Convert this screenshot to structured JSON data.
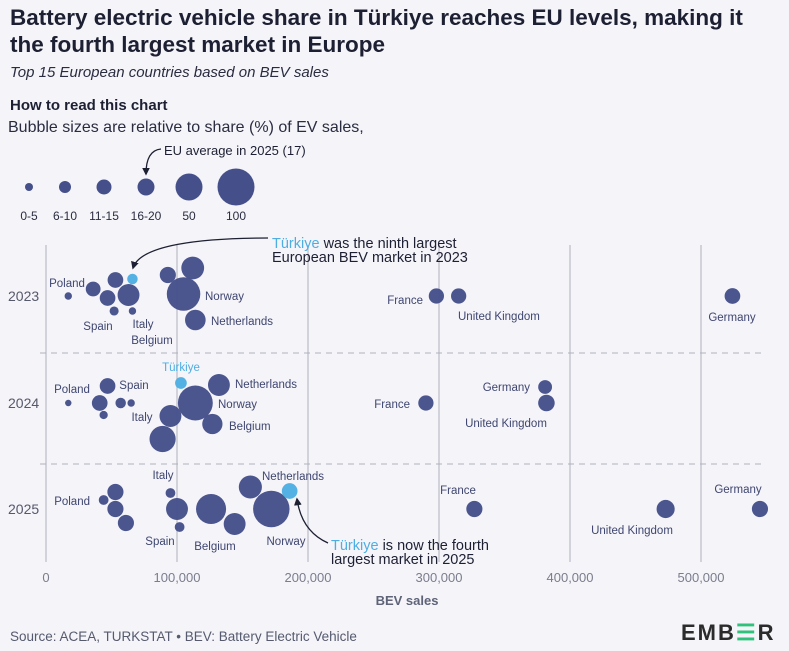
{
  "header": {
    "title": "Battery electric vehicle share in Türkiye reaches EU levels, making it the fourth largest market in Europe",
    "subtitle": "Top 15 European countries based on BEV sales"
  },
  "legend": {
    "heading": "How to read this chart",
    "description": "Bubble sizes are relative to share (%) of EV sales,",
    "eu_note": "EU average in 2025 (17)",
    "items": [
      {
        "label": "0-5",
        "share": 3
      },
      {
        "label": "6-10",
        "share": 8
      },
      {
        "label": "11-15",
        "share": 13
      },
      {
        "label": "16-20",
        "share": 18
      },
      {
        "label": "50",
        "share": 50
      },
      {
        "label": "100",
        "share": 100
      }
    ]
  },
  "annotations": {
    "top": {
      "highlight": "Türkiye",
      "rest_line1": " was the ninth largest",
      "line2": "European BEV market in 2023"
    },
    "bottom": {
      "highlight": "Türkiye",
      "rest_line1": " is now the fourth",
      "line2": "largest market in 2025"
    }
  },
  "colors": {
    "bubble": "#45508a",
    "turkiye": "#4eaee2",
    "grid": "#c5c6cf",
    "text": "#3f4670",
    "background": "#f4f4f9",
    "brand_green": "#2fc27a"
  },
  "chart_data": {
    "type": "scatter",
    "xlabel": "BEV sales",
    "ylabel": "",
    "xlim": [
      0,
      550000
    ],
    "xticks": [
      0,
      100000,
      200000,
      300000,
      400000,
      500000
    ],
    "xtick_labels": [
      "0",
      "100,000",
      "200,000",
      "300,000",
      "400,000",
      "500,000"
    ],
    "size_encoding": "share (%) of EV sales",
    "grid": true,
    "rows": [
      {
        "year": "2023",
        "points": [
          {
            "label": "Poland",
            "sales": 17000,
            "share": 4
          },
          {
            "label": "",
            "sales": 36000,
            "share": 16
          },
          {
            "label": "",
            "sales": 53000,
            "share": 18
          },
          {
            "label": "",
            "sales": 47000,
            "share": 18
          },
          {
            "label": "",
            "sales": 66000,
            "share": 8,
            "highlight": true
          },
          {
            "label": "",
            "sales": 63000,
            "share": 35
          },
          {
            "label": "Spain",
            "sales": 52000,
            "share": 6
          },
          {
            "label": "Italy",
            "sales": 66000,
            "share": 4
          },
          {
            "label": "Belgium",
            "sales": 93000,
            "share": 19
          },
          {
            "label": "",
            "sales": 112000,
            "share": 38
          },
          {
            "label": "Norway",
            "sales": 105000,
            "share": 82
          },
          {
            "label": "Netherlands",
            "sales": 114000,
            "share": 31
          },
          {
            "label": "France",
            "sales": 298000,
            "share": 17
          },
          {
            "label": "United Kingdom",
            "sales": 315000,
            "share": 17
          },
          {
            "label": "Germany",
            "sales": 524000,
            "share": 18
          }
        ]
      },
      {
        "year": "2024",
        "points": [
          {
            "label": "Poland",
            "sales": 17000,
            "share": 3
          },
          {
            "label": "",
            "sales": 47000,
            "share": 18
          },
          {
            "label": "",
            "sales": 41000,
            "share": 18
          },
          {
            "label": "",
            "sales": 44000,
            "share": 5
          },
          {
            "label": "Spain",
            "sales": 57000,
            "share": 8
          },
          {
            "label": "Italy",
            "sales": 65000,
            "share": 4
          },
          {
            "label": "Türkiye",
            "sales": 103000,
            "share": 10,
            "highlight": true
          },
          {
            "label": "Netherlands",
            "sales": 132000,
            "share": 35
          },
          {
            "label": "Norway",
            "sales": 114000,
            "share": 89
          },
          {
            "label": "",
            "sales": 95000,
            "share": 35
          },
          {
            "label": "Belgium",
            "sales": 127000,
            "share": 30
          },
          {
            "label": "",
            "sales": 89000,
            "share": 50
          },
          {
            "label": "Germany",
            "sales": 381000,
            "share": 14
          },
          {
            "label": "France",
            "sales": 290000,
            "share": 17
          },
          {
            "label": "United Kingdom",
            "sales": 382000,
            "share": 20
          }
        ]
      },
      {
        "year": "2025",
        "points": [
          {
            "label": "Poland",
            "sales": 44000,
            "share": 7
          },
          {
            "label": "",
            "sales": 53000,
            "share": 19
          },
          {
            "label": "",
            "sales": 53000,
            "share": 19
          },
          {
            "label": "",
            "sales": 61000,
            "share": 19
          },
          {
            "label": "Italy",
            "sales": 95000,
            "share": 7
          },
          {
            "label": "",
            "sales": 100000,
            "share": 35
          },
          {
            "label": "Spain",
            "sales": 102000,
            "share": 7
          },
          {
            "label": "",
            "sales": 126000,
            "share": 66
          },
          {
            "label": "Belgium",
            "sales": 144000,
            "share": 35
          },
          {
            "label": "Netherlands",
            "sales": 156000,
            "share": 39
          },
          {
            "label": "Norway",
            "sales": 172000,
            "share": 97
          },
          {
            "label": "",
            "sales": 186000,
            "share": 18,
            "highlight": true
          },
          {
            "label": "France",
            "sales": 327000,
            "share": 19
          },
          {
            "label": "United Kingdom",
            "sales": 473000,
            "share": 24
          },
          {
            "label": "Germany",
            "sales": 545000,
            "share": 19
          }
        ]
      }
    ]
  },
  "footer": {
    "source": "Source: ACEA, TURKSTAT • BEV: Battery Electric Vehicle",
    "logo": "EMBER"
  }
}
